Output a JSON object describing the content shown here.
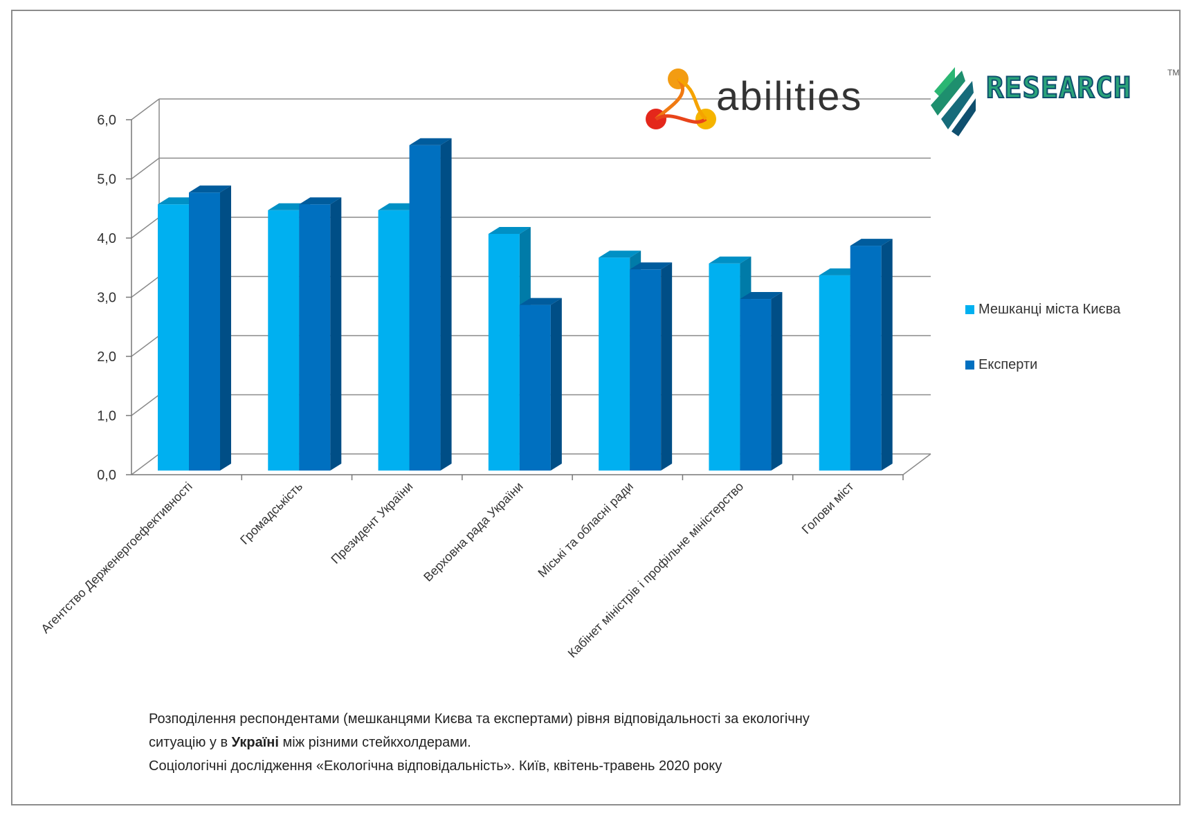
{
  "chart_data": {
    "type": "bar",
    "categories": [
      "Агентство Держенергоефективності",
      "Громадськість",
      "Президент України",
      "Верховна рада України",
      "Міські та обласні ради",
      "Кабінет міністрів і профільне міністерство",
      "Голови міст"
    ],
    "series": [
      {
        "name": "Мешканці міста Києва",
        "values": [
          4.5,
          4.4,
          4.4,
          4.0,
          3.6,
          3.5,
          3.3
        ],
        "color": "#00b0f0"
      },
      {
        "name": "Експерти",
        "values": [
          4.7,
          4.5,
          5.5,
          2.8,
          3.4,
          2.9,
          3.8
        ],
        "color": "#0070c0"
      }
    ],
    "yticks": [
      "0,0",
      "1,0",
      "2,0",
      "3,0",
      "4,0",
      "5,0",
      "6,0"
    ],
    "ylim": [
      0,
      6
    ],
    "grid": true,
    "legend_position": "right",
    "style": "3d-clustered-column"
  },
  "legend": {
    "items": [
      {
        "label": "Мешканці міста Києва",
        "color": "#00b0f0"
      },
      {
        "label": "Експерти",
        "color": "#0070c0"
      }
    ]
  },
  "caption": {
    "line1": "Розподілення респондентами (мешканцями Києва та експертами) рівня відповідальності за екологічну",
    "line2_pre": "ситуацію у в ",
    "line2_bold": "Україні",
    "line2_post": " між різними стейкхолдерами.",
    "line3": "Соціологічні дослідження «Екологічна відповідальність». Київ, квітень-травень 2020 року"
  },
  "logos": {
    "abilities": "abilities",
    "research": "RESEARCH",
    "research_tm": "TM"
  }
}
